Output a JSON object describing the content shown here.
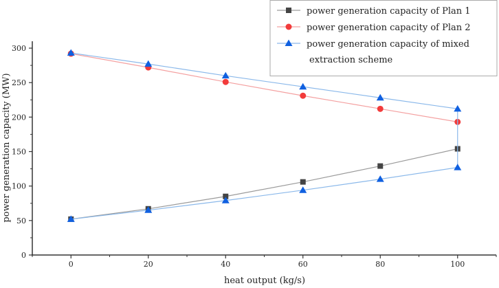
{
  "chart_data": {
    "type": "line",
    "title": "",
    "xlabel": "heat output (kg/s)",
    "ylabel": "power generation capacity (MW)",
    "xlim": [
      -10,
      110
    ],
    "ylim": [
      0,
      310
    ],
    "xticks": [
      0,
      20,
      40,
      60,
      80,
      100
    ],
    "yticks": [
      0,
      50,
      100,
      150,
      200,
      250,
      300
    ],
    "grid": false,
    "legend_position": "top-right",
    "series": [
      {
        "name": "power generation capacity of Plan 1",
        "color": "#444444",
        "line_color": "#9a9a9a",
        "marker": "square",
        "x": [
          0,
          20,
          40,
          60,
          80,
          100
        ],
        "y": [
          52,
          67,
          85,
          106,
          129,
          154
        ]
      },
      {
        "name": "power generation capacity of Plan 2",
        "color": "#f23b3b",
        "line_color": "#f4a0a0",
        "marker": "circle",
        "x": [
          0,
          20,
          40,
          60,
          80,
          100
        ],
        "y": [
          292,
          272,
          251,
          231,
          212,
          193
        ]
      },
      {
        "name": "power generation capacity of mixed extraction scheme",
        "color": "#1060e0",
        "line_color": "#8ab8ea",
        "marker": "triangle",
        "x": [
          0,
          20,
          40,
          60,
          80,
          100,
          100,
          80,
          60,
          40,
          20,
          0
        ],
        "y": [
          293,
          277,
          260,
          244,
          228,
          212,
          127,
          110,
          94,
          79,
          65,
          52
        ]
      }
    ],
    "legend_lines": [
      [
        "power generation capacity of Plan 1"
      ],
      [
        "power generation capacity of Plan 2"
      ],
      [
        "power generation capacity of mixed",
        "extraction scheme"
      ]
    ]
  }
}
